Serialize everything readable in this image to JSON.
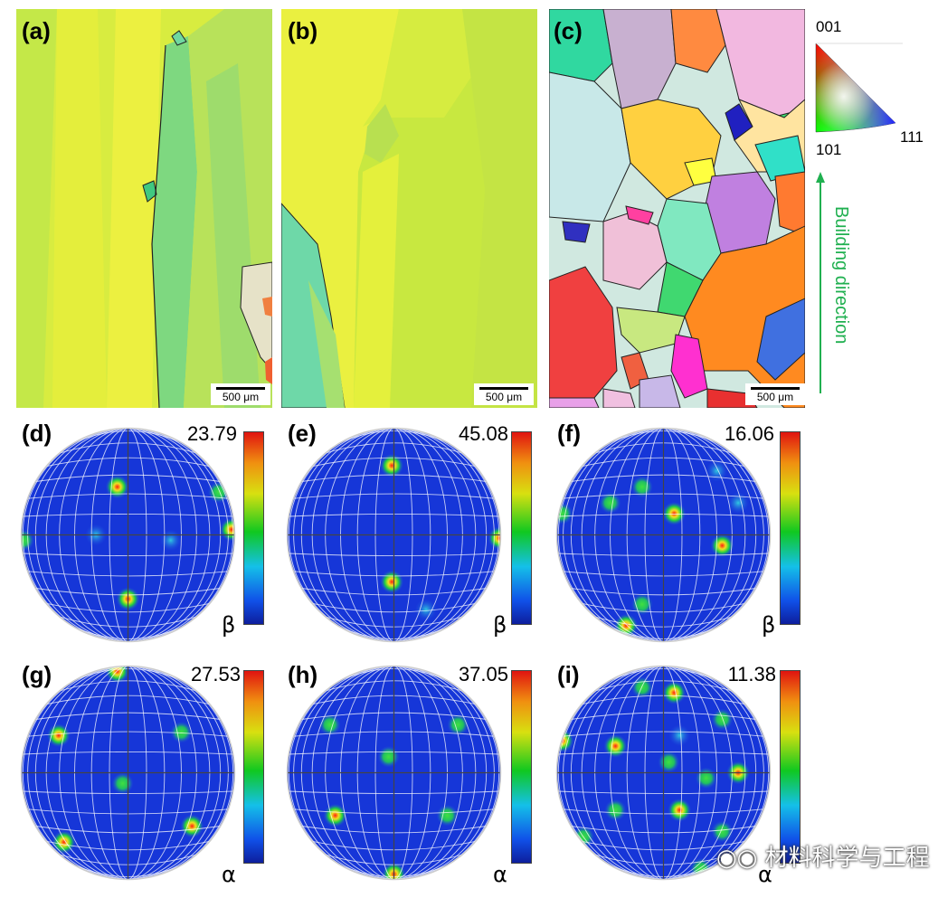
{
  "panels_top": [
    {
      "label": "(a)",
      "scale": "500 μm"
    },
    {
      "label": "(b)",
      "scale": "500 μm"
    },
    {
      "label": "(c)",
      "scale": "500 μm"
    }
  ],
  "ipf_key": {
    "top": "001",
    "left": "101",
    "right": "111"
  },
  "building_direction": "Building direction",
  "pole_figures": [
    {
      "label": "(d)",
      "max": "23.79",
      "phase": "β"
    },
    {
      "label": "(e)",
      "max": "45.08",
      "phase": "β"
    },
    {
      "label": "(f)",
      "max": "16.06",
      "phase": "β"
    },
    {
      "label": "(g)",
      "max": "27.53",
      "phase": "α"
    },
    {
      "label": "(h)",
      "max": "37.05",
      "phase": "α"
    },
    {
      "label": "(i)",
      "max": "11.38",
      "phase": "α"
    }
  ],
  "watermark": "材料科学与工程"
}
